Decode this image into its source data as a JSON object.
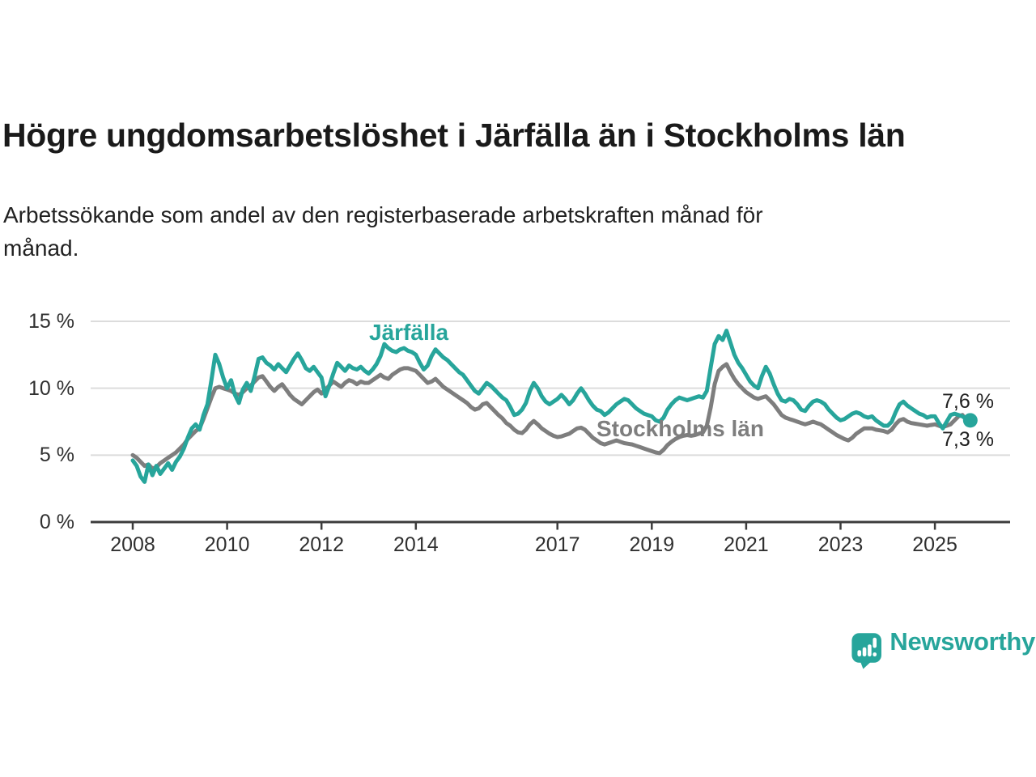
{
  "title": "Högre ungdomsarbetslöshet i Järfälla än i Stockholms län",
  "subtitle_lines": [
    "Arbetssökande som andel av den registerbaserade arbetskraften månad för",
    "månad."
  ],
  "branding": {
    "name": "Newsworthy"
  },
  "colors": {
    "jarfalla": "#27a59b",
    "stockholm": "#7e7e7e",
    "grid": "#dcdcdc",
    "axis": "#3c3c3c",
    "tick_text": "#303030",
    "title_text": "#1a1a1a",
    "logo": "#27a59b"
  },
  "chart_data": {
    "type": "line",
    "title": "Högre ungdomsarbetslöshet i Järfälla än i Stockholms län",
    "subtitle": "Arbetssökande som andel av den registerbaserade arbetskraften månad för månad.",
    "x_unit": "month",
    "x_start": 2008.0,
    "x_end": 2025.75,
    "ylim": [
      0,
      15.4
    ],
    "grid": "horizontal",
    "legend_position": "inline-labels",
    "y_ticks": [
      {
        "value": 15,
        "label": "15 %"
      },
      {
        "value": 10,
        "label": "10 %"
      },
      {
        "value": 5,
        "label": "5 %"
      },
      {
        "value": 0,
        "label": "0 %"
      }
    ],
    "x_ticks": [
      {
        "year": 2008,
        "label": "2008"
      },
      {
        "year": 2010,
        "label": "2010"
      },
      {
        "year": 2012,
        "label": "2012"
      },
      {
        "year": 2014,
        "label": "2014"
      },
      {
        "year": 2017,
        "label": "2017"
      },
      {
        "year": 2019,
        "label": "2019"
      },
      {
        "year": 2021,
        "label": "2021"
      },
      {
        "year": 2023,
        "label": "2023"
      },
      {
        "year": 2025,
        "label": "2025"
      }
    ],
    "series": [
      {
        "name": "Järfälla",
        "color": "#27a59b",
        "end_label": "7,6 %",
        "end_value": 7.6,
        "end_dot": true,
        "values": [
          4.6,
          4.2,
          3.4,
          3.0,
          4.3,
          3.5,
          4.2,
          3.6,
          4.0,
          4.4,
          3.9,
          4.5,
          4.9,
          5.5,
          6.3,
          7.0,
          7.3,
          6.9,
          8.0,
          8.8,
          10.6,
          12.5,
          11.8,
          10.8,
          10.0,
          10.6,
          9.5,
          8.9,
          9.9,
          10.4,
          9.8,
          10.9,
          12.2,
          12.3,
          11.9,
          11.7,
          11.4,
          11.8,
          11.5,
          11.2,
          11.7,
          12.2,
          12.6,
          12.1,
          11.5,
          11.3,
          11.6,
          11.2,
          10.8,
          9.4,
          10.2,
          11.1,
          11.9,
          11.6,
          11.3,
          11.7,
          11.5,
          11.4,
          11.6,
          11.3,
          11.1,
          11.4,
          11.8,
          12.4,
          13.3,
          13.0,
          12.8,
          12.7,
          12.9,
          13.0,
          12.8,
          12.7,
          12.5,
          11.9,
          11.4,
          11.7,
          12.4,
          12.9,
          12.6,
          12.3,
          12.1,
          11.8,
          11.5,
          11.2,
          11.0,
          10.6,
          10.2,
          9.8,
          9.6,
          10.0,
          10.4,
          10.2,
          9.9,
          9.6,
          9.3,
          9.1,
          8.6,
          8.0,
          8.1,
          8.4,
          8.9,
          9.8,
          10.4,
          10.0,
          9.4,
          9.0,
          8.8,
          9.0,
          9.2,
          9.5,
          9.2,
          8.8,
          9.1,
          9.6,
          10.0,
          9.6,
          9.1,
          8.7,
          8.4,
          8.3,
          8.0,
          8.2,
          8.5,
          8.8,
          9.0,
          9.2,
          9.1,
          8.8,
          8.5,
          8.3,
          8.1,
          8.0,
          7.9,
          7.6,
          7.5,
          7.8,
          8.4,
          8.8,
          9.1,
          9.3,
          9.2,
          9.1,
          9.2,
          9.3,
          9.4,
          9.3,
          9.8,
          11.6,
          13.3,
          13.9,
          13.6,
          14.3,
          13.4,
          12.5,
          11.9,
          11.5,
          11.0,
          10.5,
          10.2,
          10.0,
          10.9,
          11.6,
          11.1,
          10.3,
          9.6,
          9.1,
          9.0,
          9.2,
          9.1,
          8.8,
          8.4,
          8.3,
          8.7,
          9.0,
          9.1,
          9.0,
          8.8,
          8.4,
          8.1,
          7.8,
          7.6,
          7.7,
          7.9,
          8.1,
          8.2,
          8.1,
          7.9,
          7.8,
          7.9,
          7.6,
          7.4,
          7.2,
          7.2,
          7.5,
          8.2,
          8.8,
          9.0,
          8.7,
          8.5,
          8.3,
          8.1,
          8.0,
          7.8,
          7.9,
          7.9,
          7.4,
          7.0,
          7.5,
          8.0,
          8.1,
          8.0,
          7.9,
          7.7,
          7.6
        ]
      },
      {
        "name": "Stockholms län",
        "color": "#7e7e7e",
        "end_label": "7,3 %",
        "end_value": 7.3,
        "end_dot": false,
        "values": [
          5.0,
          4.8,
          4.5,
          4.2,
          4.3,
          4.0,
          4.1,
          4.4,
          4.6,
          4.8,
          5.0,
          5.2,
          5.5,
          5.8,
          6.2,
          6.5,
          6.8,
          7.0,
          7.7,
          8.5,
          9.3,
          10.0,
          10.1,
          10.0,
          9.9,
          9.8,
          9.6,
          9.5,
          9.7,
          10.0,
          10.2,
          10.5,
          10.8,
          10.9,
          10.5,
          10.1,
          9.8,
          10.1,
          10.3,
          9.9,
          9.5,
          9.2,
          9.0,
          8.8,
          9.1,
          9.4,
          9.7,
          9.9,
          9.6,
          9.9,
          10.2,
          10.5,
          10.3,
          10.1,
          10.4,
          10.6,
          10.5,
          10.3,
          10.5,
          10.4,
          10.4,
          10.6,
          10.8,
          11.0,
          10.8,
          10.7,
          11.0,
          11.2,
          11.4,
          11.5,
          11.5,
          11.4,
          11.3,
          11.0,
          10.7,
          10.4,
          10.5,
          10.7,
          10.4,
          10.1,
          9.9,
          9.7,
          9.5,
          9.3,
          9.1,
          8.9,
          8.6,
          8.4,
          8.5,
          8.8,
          8.9,
          8.6,
          8.3,
          8.0,
          7.75,
          7.4,
          7.2,
          6.9,
          6.7,
          6.65,
          6.9,
          7.3,
          7.55,
          7.3,
          7.0,
          6.8,
          6.6,
          6.45,
          6.35,
          6.4,
          6.5,
          6.6,
          6.8,
          7.0,
          7.05,
          6.9,
          6.6,
          6.3,
          6.1,
          5.9,
          5.8,
          5.9,
          6.0,
          6.1,
          6.0,
          5.9,
          5.85,
          5.8,
          5.7,
          5.6,
          5.5,
          5.4,
          5.3,
          5.2,
          5.15,
          5.4,
          5.75,
          6.0,
          6.2,
          6.35,
          6.45,
          6.5,
          6.45,
          6.5,
          6.6,
          6.7,
          7.2,
          8.6,
          10.3,
          11.3,
          11.6,
          11.8,
          11.2,
          10.7,
          10.3,
          10.0,
          9.7,
          9.5,
          9.3,
          9.2,
          9.3,
          9.4,
          9.1,
          8.8,
          8.4,
          8.0,
          7.8,
          7.7,
          7.6,
          7.5,
          7.4,
          7.3,
          7.4,
          7.5,
          7.4,
          7.3,
          7.1,
          6.9,
          6.7,
          6.5,
          6.35,
          6.2,
          6.1,
          6.3,
          6.6,
          6.8,
          7.0,
          7.0,
          7.0,
          6.9,
          6.85,
          6.8,
          6.7,
          6.9,
          7.3,
          7.6,
          7.7,
          7.5,
          7.4,
          7.35,
          7.3,
          7.25,
          7.2,
          7.25,
          7.3,
          7.2,
          7.1,
          7.2,
          7.3,
          7.6,
          7.9,
          8.0,
          7.6,
          7.3
        ]
      }
    ]
  }
}
